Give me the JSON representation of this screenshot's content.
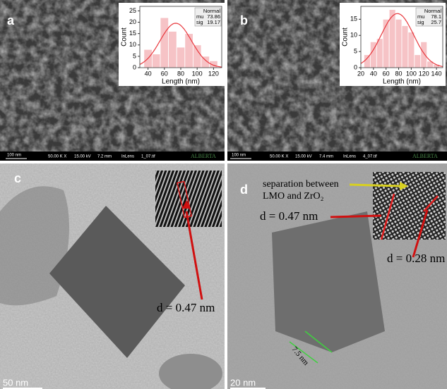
{
  "chart_data": [
    {
      "type": "histogram",
      "xlabel": "Length (nm)",
      "ylabel": "Count",
      "bins": [
        35,
        45,
        55,
        65,
        75,
        85,
        95,
        105,
        115,
        125
      ],
      "values": [
        8,
        6,
        22,
        16,
        9,
        15,
        10,
        5,
        3
      ],
      "color": "#f6c3c6",
      "xlim": [
        30,
        130
      ],
      "xticks": [
        40,
        60,
        80,
        100,
        120
      ],
      "ylim": [
        0,
        27
      ],
      "yticks": [
        0,
        5,
        10,
        15,
        20,
        25
      ],
      "fit": {
        "name": "Normal",
        "color": "#e8383d",
        "params": [
          {
            "label": "mu",
            "value": 73.86
          },
          {
            "label": "sig",
            "value": 19.17
          }
        ]
      }
    },
    {
      "type": "histogram",
      "xlabel": "Length (nm)",
      "ylabel": "Count",
      "bins": [
        25,
        35,
        45,
        55,
        65,
        75,
        85,
        95,
        105,
        115,
        125,
        135,
        145
      ],
      "values": [
        4,
        8,
        9,
        15,
        18,
        15,
        13,
        11,
        4,
        8,
        2,
        1
      ],
      "color": "#f6c3c6",
      "xlim": [
        20,
        150
      ],
      "xticks": [
        20,
        40,
        60,
        80,
        100,
        120,
        140
      ],
      "ylim": [
        0,
        19
      ],
      "yticks": [
        0,
        5,
        10,
        15
      ],
      "fit": {
        "name": "Normal",
        "color": "#e8383d",
        "params": [
          {
            "label": "mu",
            "value": 78.1
          },
          {
            "label": "sig",
            "value": 25.7
          }
        ]
      }
    }
  ],
  "panels": [
    {
      "label": "a",
      "footer": [
        "100 nm",
        "50.00 K X",
        "15.00 kV",
        "7.2 mm",
        "InLens",
        "1_07.tif",
        "ALBERTA"
      ]
    },
    {
      "label": "b",
      "footer": [
        "100 nm",
        "50.00 K X",
        "15.00 kV",
        "7.4 mm",
        "InLens",
        "4_07.tif",
        "ALBERTA"
      ]
    },
    {
      "label": "c",
      "annotations": [
        "d = 0.47 nm"
      ],
      "scale": "50 nm"
    },
    {
      "label": "d",
      "annotations": [
        "separation between",
        "LMO and ZrO₂",
        "d = 0.47 nm",
        "d = 0.28 nm",
        "7.5 nm"
      ],
      "scale": "20 nm"
    }
  ]
}
